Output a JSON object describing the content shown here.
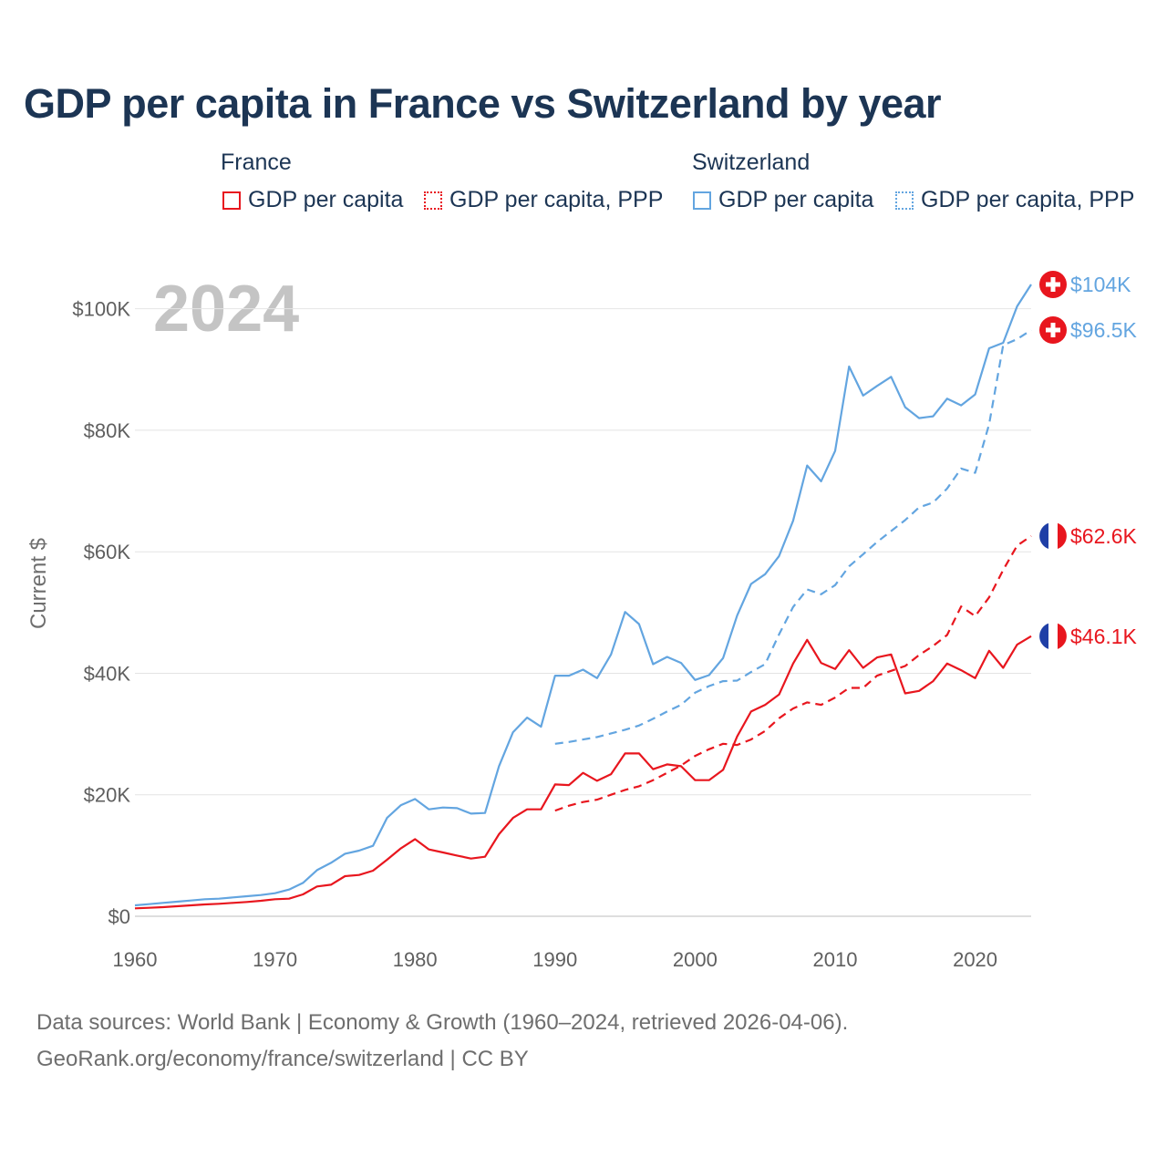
{
  "header": {
    "title": "GDP per capita in France vs Switzerland by year"
  },
  "legend": {
    "groups": [
      {
        "title": "France",
        "items": [
          {
            "label": "GDP per capita",
            "color": "#e8161e",
            "style": "solid"
          },
          {
            "label": "GDP per capita, PPP",
            "color": "#e8161e",
            "style": "dotted"
          }
        ]
      },
      {
        "title": "Switzerland",
        "items": [
          {
            "label": "GDP per capita",
            "color": "#63a5e0",
            "style": "solid"
          },
          {
            "label": "GDP per capita, PPP",
            "color": "#63a5e0",
            "style": "dotted"
          }
        ]
      }
    ]
  },
  "year_overlay": "2024",
  "footer": {
    "line1": "Data sources: World Bank | Economy & Growth (1960–2024, retrieved 2026-04-06).",
    "line2": "GeoRank.org/economy/france/switzerland | CC BY"
  },
  "colors": {
    "france": "#e8161e",
    "switzerland": "#63a5e0",
    "title": "#1c3554",
    "grid": "#e4e4e4",
    "axis_text": "#5f5f5f"
  },
  "chart_data": {
    "type": "line",
    "title": "GDP per capita in France vs Switzerland by year",
    "xlabel": "",
    "ylabel": "Current $",
    "xlim": [
      1960,
      2024
    ],
    "ylim": [
      0,
      104000
    ],
    "x_ticks": [
      1960,
      1970,
      1980,
      1990,
      2000,
      2010,
      2020
    ],
    "y_ticks": [
      0,
      20000,
      40000,
      60000,
      80000,
      100000
    ],
    "y_tick_labels": [
      "$0",
      "$20K",
      "$40K",
      "$60K",
      "$80K",
      "$100K"
    ],
    "grid": true,
    "series": [
      {
        "name": "Switzerland GDP per capita",
        "key": "ch-gdp",
        "country": "switzerland",
        "style": "solid",
        "end_label": "$104K",
        "x": [
          1960,
          1961,
          1962,
          1963,
          1964,
          1965,
          1966,
          1967,
          1968,
          1969,
          1970,
          1971,
          1972,
          1973,
          1974,
          1975,
          1976,
          1977,
          1978,
          1979,
          1980,
          1981,
          1982,
          1983,
          1984,
          1985,
          1986,
          1987,
          1988,
          1989,
          1990,
          1991,
          1992,
          1993,
          1994,
          1995,
          1996,
          1997,
          1998,
          1999,
          2000,
          2001,
          2002,
          2003,
          2004,
          2005,
          2006,
          2007,
          2008,
          2009,
          2010,
          2011,
          2012,
          2013,
          2014,
          2015,
          2016,
          2017,
          2018,
          2019,
          2020,
          2021,
          2022,
          2023,
          2024
        ],
        "values": [
          1800,
          2000,
          2200,
          2400,
          2600,
          2800,
          2900,
          3100,
          3300,
          3500,
          3800,
          4400,
          5500,
          7600,
          8800,
          10300,
          10800,
          11600,
          16200,
          18300,
          19300,
          17600,
          17900,
          17800,
          16900,
          17000,
          24700,
          30300,
          32700,
          31200,
          39600,
          39600,
          40600,
          39200,
          43100,
          50100,
          48100,
          41500,
          42700,
          41700,
          38900,
          39700,
          42500,
          49500,
          54700,
          56300,
          59300,
          65100,
          74200,
          71600,
          76600,
          90500,
          85700,
          87300,
          88800,
          83800,
          82000,
          82300,
          85200,
          84100,
          85900,
          93500,
          94400,
          100400,
          104000
        ]
      },
      {
        "name": "Switzerland GDP per capita, PPP",
        "key": "ch-ppp",
        "country": "switzerland",
        "style": "dashed",
        "end_label": "$96.5K",
        "x": [
          1990,
          1991,
          1992,
          1993,
          1994,
          1995,
          1996,
          1997,
          1998,
          1999,
          2000,
          2001,
          2002,
          2003,
          2004,
          2005,
          2006,
          2007,
          2008,
          2009,
          2010,
          2011,
          2012,
          2013,
          2014,
          2015,
          2016,
          2017,
          2018,
          2019,
          2020,
          2021,
          2022,
          2023,
          2024
        ],
        "values": [
          28400,
          28700,
          29100,
          29500,
          30100,
          30700,
          31400,
          32500,
          33700,
          34800,
          36800,
          37900,
          38700,
          38800,
          40200,
          41500,
          46400,
          50900,
          53800,
          53000,
          54500,
          57600,
          59600,
          61600,
          63400,
          65200,
          67300,
          68100,
          70400,
          73700,
          73000,
          81000,
          94000,
          95000,
          96500
        ]
      },
      {
        "name": "France GDP per capita",
        "key": "fr-gdp",
        "country": "france",
        "style": "solid",
        "end_label": "$46.1K",
        "x": [
          1960,
          1961,
          1962,
          1963,
          1964,
          1965,
          1966,
          1967,
          1968,
          1969,
          1970,
          1971,
          1972,
          1973,
          1974,
          1975,
          1976,
          1977,
          1978,
          1979,
          1980,
          1981,
          1982,
          1983,
          1984,
          1985,
          1986,
          1987,
          1988,
          1989,
          1990,
          1991,
          1992,
          1993,
          1994,
          1995,
          1996,
          1997,
          1998,
          1999,
          2000,
          2001,
          2002,
          2003,
          2004,
          2005,
          2006,
          2007,
          2008,
          2009,
          2010,
          2011,
          2012,
          2013,
          2014,
          2015,
          2016,
          2017,
          2018,
          2019,
          2020,
          2021,
          2022,
          2023,
          2024
        ],
        "values": [
          1300,
          1400,
          1500,
          1650,
          1800,
          1950,
          2050,
          2200,
          2350,
          2550,
          2800,
          2900,
          3600,
          4900,
          5200,
          6600,
          6800,
          7500,
          9300,
          11200,
          12700,
          11000,
          10500,
          10000,
          9500,
          9800,
          13500,
          16200,
          17600,
          17600,
          21700,
          21600,
          23600,
          22300,
          23400,
          26800,
          26800,
          24200,
          25000,
          24700,
          22400,
          22400,
          24100,
          29600,
          33700,
          34800,
          36500,
          41600,
          45500,
          41700,
          40700,
          43800,
          40900,
          42600,
          43100,
          36700,
          37100,
          38700,
          41600,
          40500,
          39200,
          43700,
          40900,
          44700,
          46100
        ]
      },
      {
        "name": "France GDP per capita, PPP",
        "key": "fr-ppp",
        "country": "france",
        "style": "dashed",
        "end_label": "$62.6K",
        "x": [
          1990,
          1991,
          1992,
          1993,
          1994,
          1995,
          1996,
          1997,
          1998,
          1999,
          2000,
          2001,
          2002,
          2003,
          2004,
          2005,
          2006,
          2007,
          2008,
          2009,
          2010,
          2011,
          2012,
          2013,
          2014,
          2015,
          2016,
          2017,
          2018,
          2019,
          2020,
          2021,
          2022,
          2023,
          2024
        ],
        "values": [
          17400,
          18200,
          18800,
          19200,
          20000,
          20800,
          21400,
          22400,
          23600,
          24800,
          26400,
          27500,
          28400,
          28200,
          29100,
          30500,
          32600,
          34200,
          35200,
          34800,
          36000,
          37600,
          37600,
          39600,
          40400,
          41200,
          43000,
          44500,
          46300,
          51000,
          49400,
          52500,
          57000,
          61000,
          62600
        ]
      }
    ]
  }
}
